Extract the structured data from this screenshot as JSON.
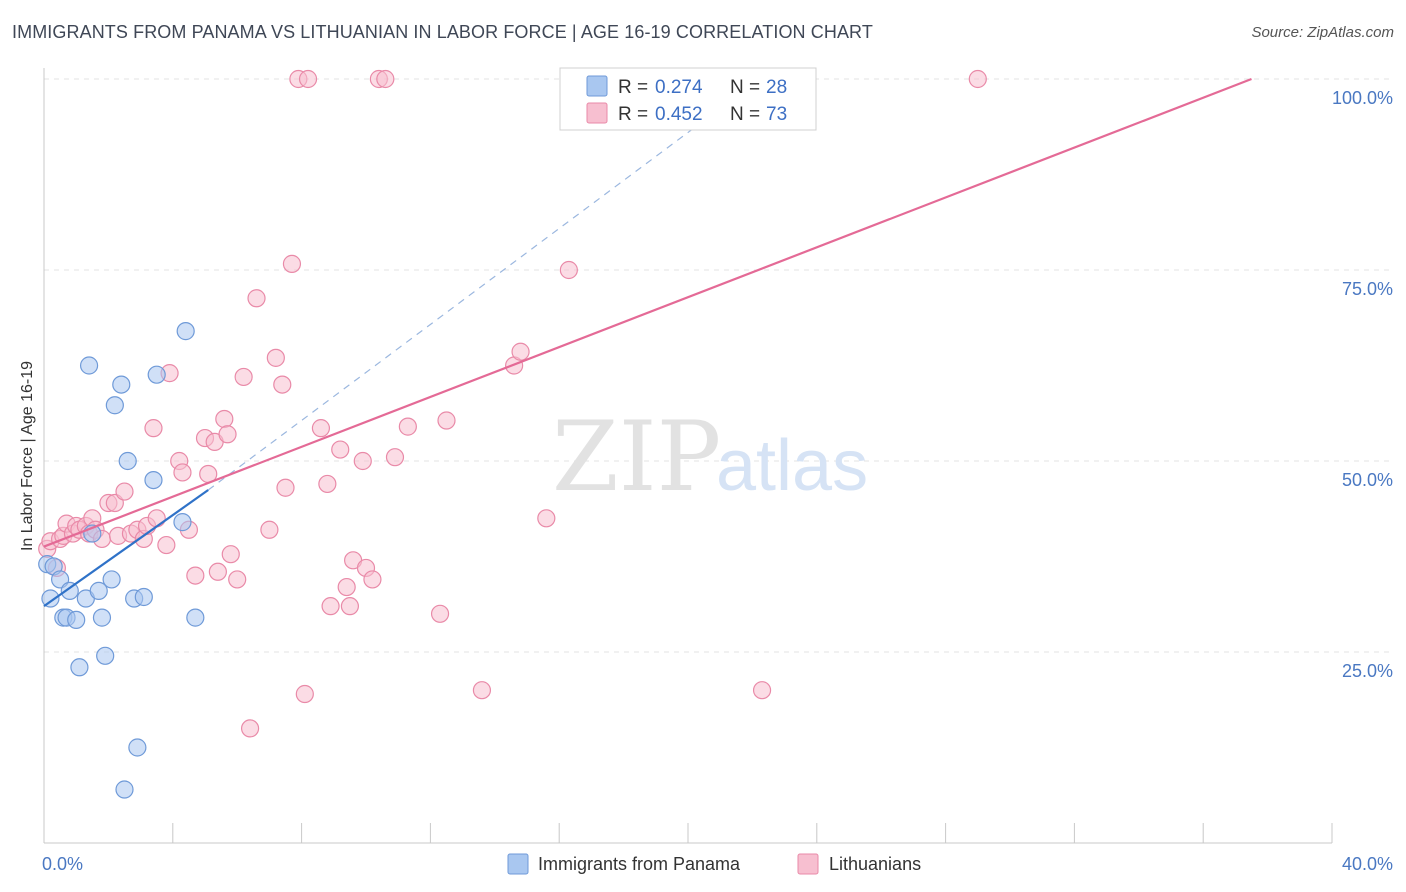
{
  "title": "IMMIGRANTS FROM PANAMA VS LITHUANIAN IN LABOR FORCE | AGE 16-19 CORRELATION CHART",
  "source": "Source: ZipAtlas.com",
  "watermark": {
    "zip": "ZIP",
    "atlas": "atlas"
  },
  "legend": {
    "rows": [
      {
        "r_label": "R = ",
        "r_value": "0.274",
        "n_label": "N = ",
        "n_value": "28",
        "color": "#a9c7f0",
        "stroke": "#6f9ad8"
      },
      {
        "r_label": "R = ",
        "r_value": "0.452",
        "n_label": "N = ",
        "n_value": "73",
        "color": "#f7bfd0",
        "stroke": "#e98aa8"
      }
    ]
  },
  "bottom_legend": [
    {
      "label": "Immigrants from Panama",
      "color": "#a9c7f0",
      "stroke": "#6f9ad8"
    },
    {
      "label": "Lithuanians",
      "color": "#f7bfd0",
      "stroke": "#e98aa8"
    }
  ],
  "chart_data": {
    "type": "scatter",
    "title": "IMMIGRANTS FROM PANAMA VS LITHUANIAN IN LABOR FORCE | AGE 16-19 CORRELATION CHART",
    "xlabel": "",
    "ylabel": "In Labor Force | Age 16-19",
    "xlim": [
      0,
      40
    ],
    "ylim": [
      0,
      100
    ],
    "x_tick_labels": [
      {
        "value": 0,
        "label": "0.0%"
      },
      {
        "value": 40,
        "label": "40.0%"
      }
    ],
    "y_tick_labels": [
      {
        "value": 25,
        "label": "25.0%"
      },
      {
        "value": 50,
        "label": "50.0%"
      },
      {
        "value": 75,
        "label": "75.0%"
      },
      {
        "value": 100,
        "label": "100.0%"
      }
    ],
    "grid": true,
    "legend_position": "top-center",
    "series": [
      {
        "name": "Immigrants from Panama",
        "color": "#a9c7f0",
        "stroke": "#6f9ad8",
        "trend_color": "#2f72c8",
        "trend": {
          "x": [
            0.0,
            5.1
          ],
          "y": [
            31.0,
            46.2
          ]
        },
        "trend_dashed": {
          "x": [
            5.1,
            20.7
          ],
          "y": [
            46.2,
            95.2
          ]
        },
        "points": [
          {
            "x": 0.1,
            "y": 36.5
          },
          {
            "x": 0.2,
            "y": 32.0
          },
          {
            "x": 0.3,
            "y": 36.2
          },
          {
            "x": 0.5,
            "y": 34.5
          },
          {
            "x": 0.6,
            "y": 29.5
          },
          {
            "x": 0.8,
            "y": 33.0
          },
          {
            "x": 0.7,
            "y": 29.5
          },
          {
            "x": 1.0,
            "y": 29.2
          },
          {
            "x": 1.1,
            "y": 23.0
          },
          {
            "x": 1.3,
            "y": 32.0
          },
          {
            "x": 1.4,
            "y": 62.5
          },
          {
            "x": 1.5,
            "y": 40.5
          },
          {
            "x": 1.7,
            "y": 33.0
          },
          {
            "x": 1.8,
            "y": 29.5
          },
          {
            "x": 1.9,
            "y": 24.5
          },
          {
            "x": 2.1,
            "y": 34.5
          },
          {
            "x": 2.2,
            "y": 57.3
          },
          {
            "x": 2.4,
            "y": 60.0
          },
          {
            "x": 2.5,
            "y": 7.0
          },
          {
            "x": 2.6,
            "y": 50.0
          },
          {
            "x": 2.8,
            "y": 32.0
          },
          {
            "x": 2.9,
            "y": 12.5
          },
          {
            "x": 3.1,
            "y": 32.2
          },
          {
            "x": 3.4,
            "y": 47.5
          },
          {
            "x": 3.5,
            "y": 61.3
          },
          {
            "x": 4.3,
            "y": 42.0
          },
          {
            "x": 4.4,
            "y": 67.0
          },
          {
            "x": 4.7,
            "y": 29.5
          }
        ]
      },
      {
        "name": "Lithuanians",
        "color": "#f7bfd0",
        "stroke": "#e98aa8",
        "trend_color": "#e46a96",
        "trend": {
          "x": [
            0.0,
            37.5
          ],
          "y": [
            38.8,
            100.0
          ]
        },
        "points": [
          {
            "x": 0.1,
            "y": 38.5
          },
          {
            "x": 0.2,
            "y": 39.5
          },
          {
            "x": 0.4,
            "y": 36.0
          },
          {
            "x": 0.5,
            "y": 39.8
          },
          {
            "x": 0.6,
            "y": 40.2
          },
          {
            "x": 0.7,
            "y": 41.8
          },
          {
            "x": 0.9,
            "y": 40.5
          },
          {
            "x": 1.0,
            "y": 41.5
          },
          {
            "x": 1.1,
            "y": 41.0
          },
          {
            "x": 1.3,
            "y": 41.5
          },
          {
            "x": 1.4,
            "y": 40.5
          },
          {
            "x": 1.5,
            "y": 42.5
          },
          {
            "x": 1.6,
            "y": 41.0
          },
          {
            "x": 1.8,
            "y": 39.8
          },
          {
            "x": 2.0,
            "y": 44.5
          },
          {
            "x": 2.2,
            "y": 44.5
          },
          {
            "x": 2.3,
            "y": 40.2
          },
          {
            "x": 2.5,
            "y": 46.0
          },
          {
            "x": 2.7,
            "y": 40.5
          },
          {
            "x": 2.9,
            "y": 41.0
          },
          {
            "x": 3.1,
            "y": 39.8
          },
          {
            "x": 3.2,
            "y": 41.5
          },
          {
            "x": 3.4,
            "y": 54.3
          },
          {
            "x": 3.5,
            "y": 42.5
          },
          {
            "x": 3.8,
            "y": 39.0
          },
          {
            "x": 3.9,
            "y": 61.5
          },
          {
            "x": 4.2,
            "y": 50.0
          },
          {
            "x": 4.3,
            "y": 48.5
          },
          {
            "x": 4.5,
            "y": 41.0
          },
          {
            "x": 4.7,
            "y": 35.0
          },
          {
            "x": 5.0,
            "y": 53.0
          },
          {
            "x": 5.1,
            "y": 48.3
          },
          {
            "x": 5.3,
            "y": 52.5
          },
          {
            "x": 5.4,
            "y": 35.5
          },
          {
            "x": 5.6,
            "y": 55.5
          },
          {
            "x": 5.7,
            "y": 53.5
          },
          {
            "x": 5.8,
            "y": 37.8
          },
          {
            "x": 6.0,
            "y": 34.5
          },
          {
            "x": 6.2,
            "y": 61.0
          },
          {
            "x": 6.4,
            "y": 15.0
          },
          {
            "x": 6.6,
            "y": 71.3
          },
          {
            "x": 7.0,
            "y": 41.0
          },
          {
            "x": 7.2,
            "y": 63.5
          },
          {
            "x": 7.4,
            "y": 60.0
          },
          {
            "x": 7.5,
            "y": 46.5
          },
          {
            "x": 7.7,
            "y": 75.8
          },
          {
            "x": 7.9,
            "y": 100.0
          },
          {
            "x": 8.1,
            "y": 19.5
          },
          {
            "x": 8.2,
            "y": 100.0
          },
          {
            "x": 8.6,
            "y": 54.3
          },
          {
            "x": 8.8,
            "y": 47.0
          },
          {
            "x": 8.9,
            "y": 31.0
          },
          {
            "x": 9.2,
            "y": 51.5
          },
          {
            "x": 9.4,
            "y": 33.5
          },
          {
            "x": 9.5,
            "y": 31.0
          },
          {
            "x": 9.6,
            "y": 37.0
          },
          {
            "x": 9.9,
            "y": 50.0
          },
          {
            "x": 10.0,
            "y": 36.0
          },
          {
            "x": 10.2,
            "y": 34.5
          },
          {
            "x": 10.4,
            "y": 100.0
          },
          {
            "x": 10.6,
            "y": 100.0
          },
          {
            "x": 10.9,
            "y": 50.5
          },
          {
            "x": 11.3,
            "y": 54.5
          },
          {
            "x": 12.3,
            "y": 30.0
          },
          {
            "x": 12.5,
            "y": 55.3
          },
          {
            "x": 13.6,
            "y": 20.0
          },
          {
            "x": 14.6,
            "y": 62.5
          },
          {
            "x": 14.8,
            "y": 64.3
          },
          {
            "x": 15.6,
            "y": 42.5
          },
          {
            "x": 16.3,
            "y": 75.0
          },
          {
            "x": 18.0,
            "y": 100.0
          },
          {
            "x": 22.3,
            "y": 20.0
          },
          {
            "x": 29.0,
            "y": 100.0
          }
        ]
      }
    ]
  }
}
